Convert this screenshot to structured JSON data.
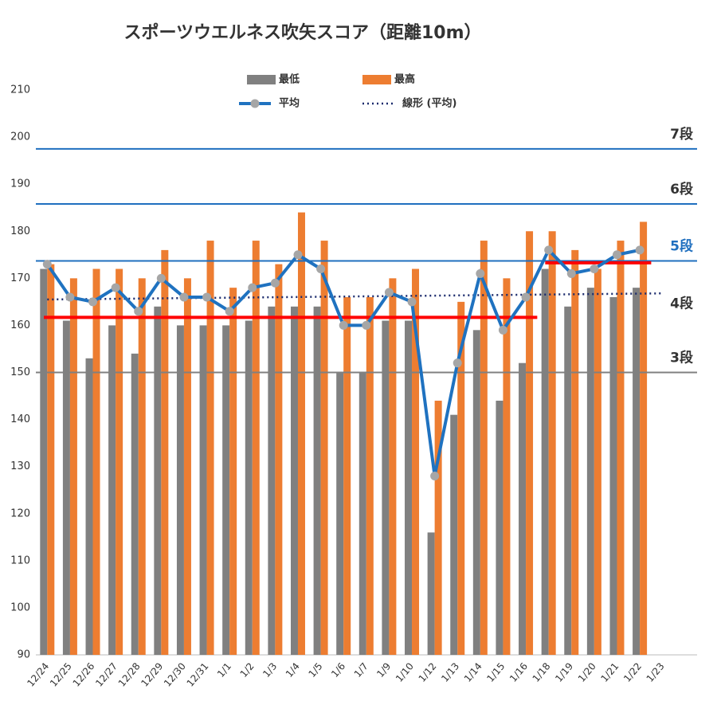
{
  "chart_data": {
    "type": "bar",
    "title": "スポーツウエルネス吹矢スコア（距離10m）",
    "categories": [
      "12/24",
      "12/25",
      "12/26",
      "12/27",
      "12/28",
      "12/29",
      "12/30",
      "12/31",
      "1/1",
      "1/2",
      "1/3",
      "1/4",
      "1/5",
      "1/6",
      "1/7",
      "1/9",
      "1/10",
      "1/12",
      "1/13",
      "1/14",
      "1/15",
      "1/16",
      "1/18",
      "1/19",
      "1/20",
      "1/21",
      "1/22",
      "1/23"
    ],
    "series": [
      {
        "name": "最低",
        "color": "#808080",
        "values": [
          172,
          161,
          153,
          160,
          154,
          164,
          160,
          160,
          160,
          161,
          164,
          164,
          164,
          150,
          150,
          161,
          161,
          116,
          141,
          159,
          144,
          152,
          172,
          164,
          168,
          166,
          168,
          null
        ]
      },
      {
        "name": "最高",
        "color": "#ed7d31",
        "values": [
          173,
          170,
          172,
          172,
          170,
          176,
          170,
          178,
          168,
          178,
          173,
          184,
          178,
          166,
          166,
          170,
          172,
          144,
          165,
          178,
          170,
          180,
          180,
          176,
          172,
          178,
          182,
          null
        ]
      },
      {
        "name": "平均",
        "type": "line",
        "color": "#1f72c0",
        "marker_color": "#a6a6a6",
        "values": [
          173,
          166,
          165,
          168,
          163,
          170,
          166,
          166,
          163,
          168,
          169,
          175,
          172,
          160,
          160,
          167,
          165,
          128,
          152,
          171,
          159,
          166,
          176,
          171,
          172,
          175,
          176,
          null
        ]
      }
    ],
    "trend": {
      "name": "線形 (平均)",
      "color": "#1a2a6c",
      "start": 165.5,
      "end": 166.8
    },
    "references": [
      {
        "label": "7段",
        "value": 197.5,
        "color": "#1f6fbf",
        "label_color": "#333333",
        "line": true
      },
      {
        "label": "6段",
        "value": 185.8,
        "color": "#1f6fbf",
        "label_color": "#333333",
        "line": true
      },
      {
        "label": "5段",
        "value": 173.7,
        "color": "#1f6fbf",
        "label_color": "#1f6fbf",
        "line": true
      },
      {
        "label": "4段",
        "value": 161.5,
        "color": "#ff0000",
        "label_color": "#333333",
        "line": false
      },
      {
        "label": "3段",
        "value": 150,
        "color": "#808080",
        "label_color": "#333333",
        "line": true
      }
    ],
    "targets": [
      {
        "value": 161.7,
        "from": 0,
        "to": 21,
        "color": "#ff0000"
      },
      {
        "value": 173.3,
        "from": 22,
        "to": 26,
        "color": "#ff0000"
      }
    ],
    "ylim": [
      90,
      210
    ],
    "yticks": [
      90,
      100,
      110,
      120,
      130,
      140,
      150,
      160,
      170,
      180,
      190,
      200,
      210
    ],
    "grid": false
  }
}
